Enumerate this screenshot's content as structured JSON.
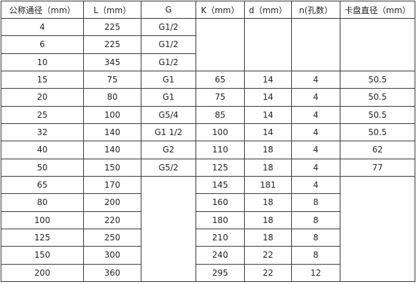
{
  "headers": [
    "公称通径（mm）",
    "L（mm）",
    "G",
    "K（mm）",
    "d（mm）",
    "n(孔数）",
    "卡盘直径（mm）"
  ],
  "rows": [
    [
      "4",
      "225",
      "G1/2",
      "",
      "",
      "",
      ""
    ],
    [
      "6",
      "225",
      "G1/2",
      null,
      null,
      null,
      null
    ],
    [
      "10",
      "345",
      "G1/2",
      null,
      null,
      null,
      null
    ],
    [
      "15",
      "75",
      "G1",
      "65",
      "14",
      "4",
      "50.5"
    ],
    [
      "20",
      "80",
      "G1",
      "75",
      "14",
      "4",
      "50.5"
    ],
    [
      "25",
      "100",
      "G5/4",
      "85",
      "14",
      "4",
      "50.5"
    ],
    [
      "32",
      "140",
      "G1  1/2",
      "100",
      "14",
      "4",
      "50.5"
    ],
    [
      "40",
      "140",
      "G2",
      "110",
      "18",
      "4",
      "62"
    ],
    [
      "50",
      "150",
      "G5/2",
      "125",
      "18",
      "4",
      "77"
    ],
    [
      "65",
      "170",
      "",
      "145",
      "181",
      "4",
      ""
    ],
    [
      "80",
      "200",
      null,
      "160",
      "18",
      "8",
      null
    ],
    [
      "100",
      "220",
      null,
      "180",
      "18",
      "8",
      null
    ],
    [
      "125",
      "250",
      null,
      "210",
      "18",
      "8",
      null
    ],
    [
      "150",
      "300",
      null,
      "240",
      "22",
      "8",
      null
    ],
    [
      "200",
      "360",
      null,
      "295",
      "22",
      "12",
      null
    ]
  ]
}
